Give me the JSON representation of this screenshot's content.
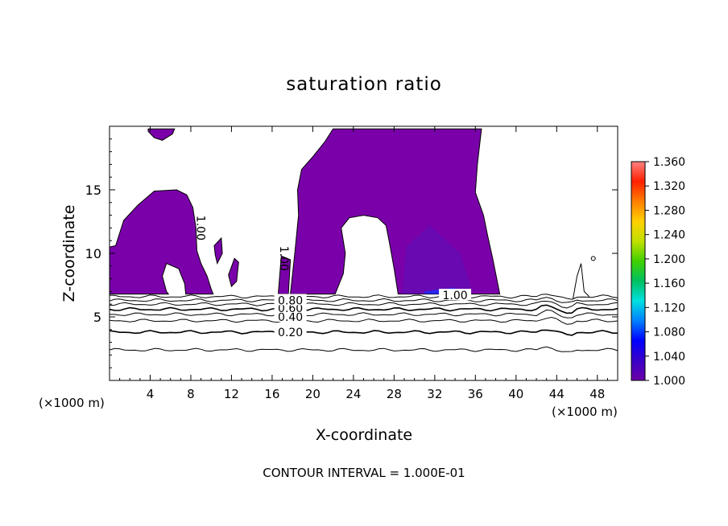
{
  "chart_data": {
    "type": "heatmap",
    "title": "saturation ratio",
    "xlabel": "X-coordinate",
    "ylabel": "Z-coordinate",
    "x_unit_left": "(×1000 m)",
    "x_unit_right": "(×1000 m)",
    "xlim": [
      0,
      50
    ],
    "ylim": [
      0,
      20
    ],
    "x_ticks": [
      4,
      8,
      12,
      16,
      20,
      24,
      28,
      32,
      36,
      40,
      44,
      48
    ],
    "y_ticks": [
      5,
      10,
      15
    ],
    "footer": "CONTOUR INTERVAL = 1.000E-01",
    "colorbar": {
      "min": 1.0,
      "max": 1.36,
      "ticks": [
        "1.360",
        "1.320",
        "1.280",
        "1.240",
        "1.200",
        "1.160",
        "1.120",
        "1.080",
        "1.040",
        "1.000"
      ],
      "colors": [
        "#6a00a8",
        "#3a00c8",
        "#0000ff",
        "#0080ff",
        "#00e0e0",
        "#00c060",
        "#40d000",
        "#c0e000",
        "#ffd000",
        "#ff8000",
        "#ff2000",
        "#ff8080"
      ]
    },
    "fill_color": "#7a00aa",
    "contour_lines": [
      {
        "level": 0.2,
        "z": 2.4
      },
      {
        "level": 0.2,
        "z": 3.8
      },
      {
        "level": 0.4,
        "z": 4.7
      },
      {
        "level": 0.5,
        "z": 5.2
      },
      {
        "level": 0.6,
        "z": 5.6
      },
      {
        "level": 0.7,
        "z": 6.0
      },
      {
        "level": 0.8,
        "z": 6.3
      },
      {
        "level": 0.9,
        "z": 6.6
      }
    ],
    "contour_labels": [
      {
        "text": "0.20",
        "x": 17.8,
        "z": 3.8
      },
      {
        "text": "0.40",
        "x": 17.8,
        "z": 5.0
      },
      {
        "text": "0.60",
        "x": 17.8,
        "z": 5.7
      },
      {
        "text": "0.80",
        "x": 17.8,
        "z": 6.3
      },
      {
        "text": "1.00",
        "x": 34.0,
        "z": 6.7
      },
      {
        "text": "1.00",
        "x": 9.0,
        "z": 12.0
      },
      {
        "text": "1.00",
        "x": 17.2,
        "z": 9.6
      }
    ],
    "regions": [
      {
        "name": "top-left-blob",
        "points": [
          [
            3.8,
            19.8
          ],
          [
            6.4,
            19.8
          ],
          [
            6.2,
            19.4
          ],
          [
            5.2,
            18.9
          ],
          [
            4.4,
            19.1
          ],
          [
            3.8,
            19.6
          ]
        ]
      },
      {
        "name": "left-cloud",
        "points": [
          [
            0,
            10.5
          ],
          [
            0.6,
            10.6
          ],
          [
            1.4,
            12.6
          ],
          [
            2.8,
            13.8
          ],
          [
            4.4,
            14.9
          ],
          [
            6.6,
            15.0
          ],
          [
            7.6,
            14.6
          ],
          [
            8.2,
            13.6
          ],
          [
            8.5,
            12.0
          ],
          [
            8.6,
            10.2
          ],
          [
            9.0,
            9.2
          ],
          [
            9.6,
            8.2
          ],
          [
            10.0,
            7.2
          ],
          [
            10.2,
            6.8
          ],
          [
            7.5,
            6.8
          ],
          [
            7.4,
            7.6
          ],
          [
            6.8,
            8.8
          ],
          [
            5.6,
            9.2
          ],
          [
            5.2,
            8.2
          ],
          [
            5.6,
            7.0
          ],
          [
            5.8,
            6.8
          ],
          [
            0,
            6.8
          ]
        ]
      },
      {
        "name": "left-strand-1",
        "points": [
          [
            10.3,
            10.6
          ],
          [
            11.0,
            11.2
          ],
          [
            11.1,
            10.0
          ],
          [
            10.6,
            9.2
          ],
          [
            10.4,
            9.9
          ]
        ]
      },
      {
        "name": "left-strand-2",
        "points": [
          [
            11.7,
            8.3
          ],
          [
            12.3,
            9.6
          ],
          [
            12.7,
            9.3
          ],
          [
            12.5,
            7.8
          ],
          [
            12.0,
            7.4
          ]
        ]
      },
      {
        "name": "left-bump",
        "points": [
          [
            16.6,
            6.8
          ],
          [
            16.9,
            9.8
          ],
          [
            17.8,
            9.5
          ],
          [
            17.7,
            8.2
          ],
          [
            17.6,
            6.8
          ]
        ]
      },
      {
        "name": "central-arch",
        "points": [
          [
            17.8,
            6.8
          ],
          [
            18.2,
            9.8
          ],
          [
            18.6,
            13.0
          ],
          [
            18.5,
            15.0
          ],
          [
            18.9,
            16.6
          ],
          [
            20.0,
            17.6
          ],
          [
            21.2,
            18.8
          ],
          [
            22.0,
            19.8
          ],
          [
            36.6,
            19.8
          ],
          [
            36.2,
            17.0
          ],
          [
            36.0,
            14.8
          ],
          [
            36.8,
            13.0
          ],
          [
            37.2,
            11.4
          ],
          [
            37.7,
            9.6
          ],
          [
            38.2,
            7.6
          ],
          [
            38.4,
            6.8
          ],
          [
            28.4,
            6.8
          ],
          [
            28.0,
            8.8
          ],
          [
            27.5,
            11.0
          ],
          [
            27.2,
            12.2
          ],
          [
            26.4,
            12.8
          ],
          [
            25.0,
            13.0
          ],
          [
            23.6,
            12.8
          ],
          [
            22.8,
            12.0
          ],
          [
            23.2,
            10.0
          ],
          [
            23.0,
            8.4
          ],
          [
            22.4,
            7.2
          ],
          [
            22.2,
            6.8
          ]
        ]
      }
    ]
  }
}
